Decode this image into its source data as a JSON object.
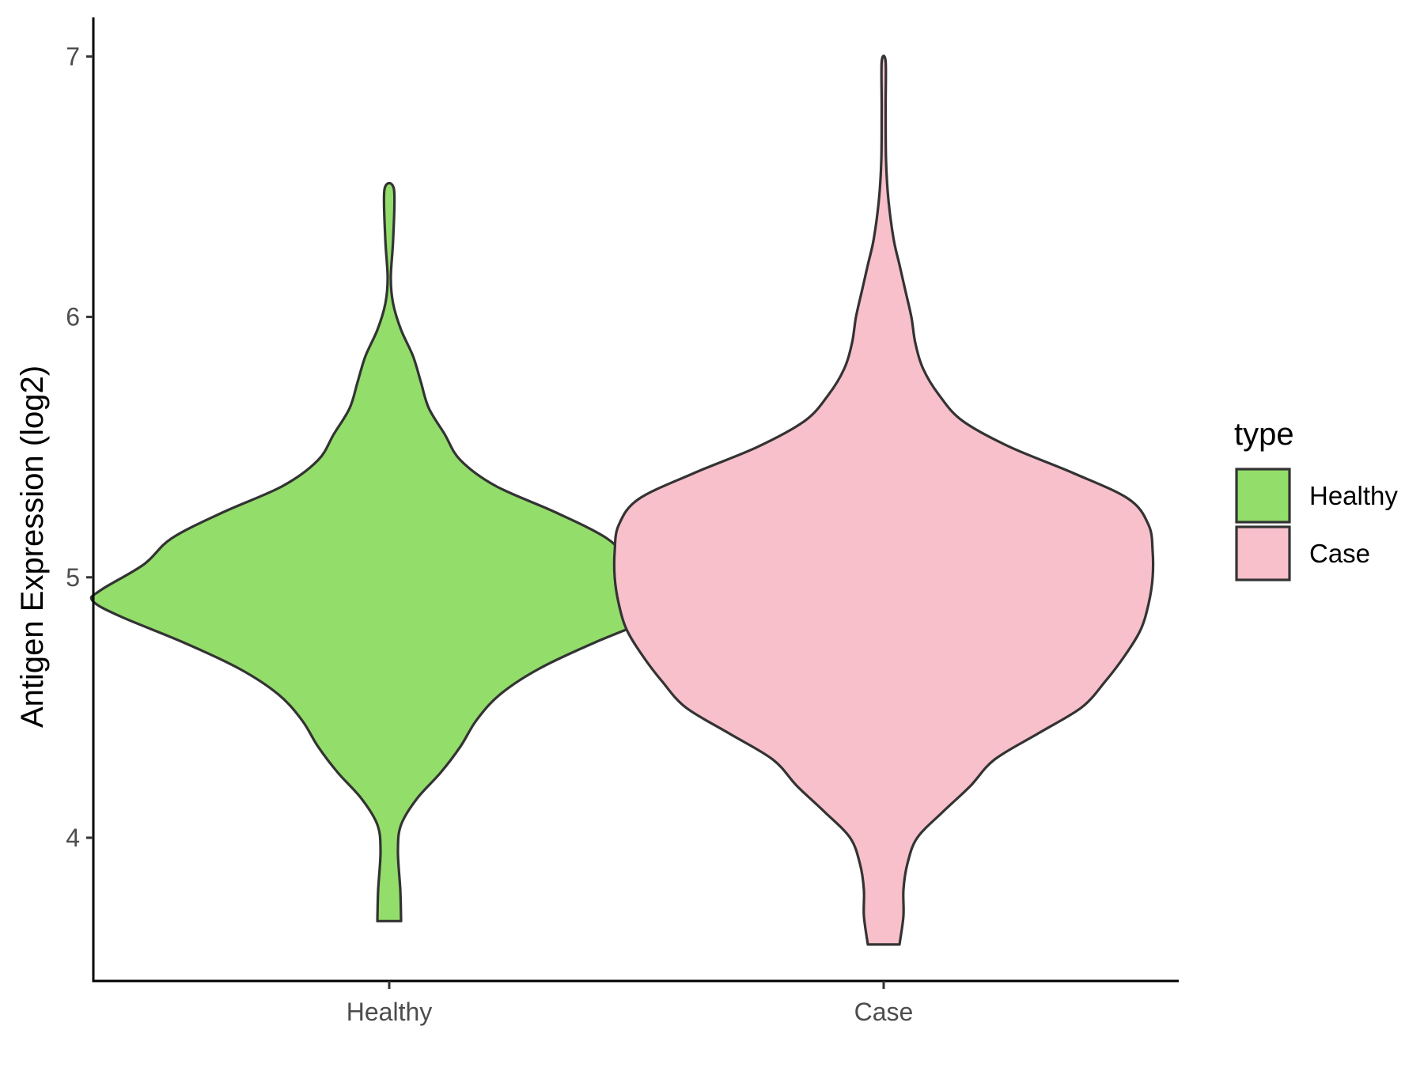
{
  "chart_data": {
    "type": "violin",
    "xlabel": "",
    "ylabel": "Antigen Expression (log2)",
    "ylim": [
      3.45,
      7.15
    ],
    "yticks": [
      4,
      5,
      6,
      7
    ],
    "categories": [
      "Healthy",
      "Case"
    ],
    "grid": false,
    "legend": {
      "title": "type",
      "position": "right",
      "entries": [
        "Healthy",
        "Case"
      ]
    },
    "colors": {
      "Healthy": "#93dd6b",
      "Case": "#f7c0cb",
      "outline": "#333333"
    },
    "series": [
      {
        "name": "Healthy",
        "min": 3.68,
        "max": 6.49,
        "density_profile": [
          [
            3.68,
            0.03
          ],
          [
            3.8,
            0.028
          ],
          [
            3.95,
            0.022
          ],
          [
            4.05,
            0.03
          ],
          [
            4.15,
            0.07
          ],
          [
            4.25,
            0.13
          ],
          [
            4.35,
            0.18
          ],
          [
            4.45,
            0.22
          ],
          [
            4.55,
            0.28
          ],
          [
            4.65,
            0.38
          ],
          [
            4.75,
            0.52
          ],
          [
            4.85,
            0.68
          ],
          [
            4.91,
            0.75
          ],
          [
            4.95,
            0.73
          ],
          [
            5.05,
            0.62
          ],
          [
            5.15,
            0.55
          ],
          [
            5.25,
            0.42
          ],
          [
            5.35,
            0.27
          ],
          [
            5.45,
            0.18
          ],
          [
            5.55,
            0.14
          ],
          [
            5.65,
            0.1
          ],
          [
            5.75,
            0.08
          ],
          [
            5.85,
            0.06
          ],
          [
            5.95,
            0.03
          ],
          [
            6.05,
            0.01
          ],
          [
            6.15,
            0.004
          ],
          [
            6.3,
            0.01
          ],
          [
            6.49,
            0.012
          ]
        ]
      },
      {
        "name": "Case",
        "min": 3.59,
        "max": 6.98,
        "density_profile": [
          [
            3.59,
            0.04
          ],
          [
            3.7,
            0.05
          ],
          [
            3.8,
            0.05
          ],
          [
            3.9,
            0.06
          ],
          [
            4.0,
            0.085
          ],
          [
            4.1,
            0.15
          ],
          [
            4.2,
            0.22
          ],
          [
            4.3,
            0.28
          ],
          [
            4.4,
            0.39
          ],
          [
            4.5,
            0.5
          ],
          [
            4.6,
            0.56
          ],
          [
            4.7,
            0.61
          ],
          [
            4.8,
            0.65
          ],
          [
            4.9,
            0.67
          ],
          [
            5.0,
            0.68
          ],
          [
            5.1,
            0.68
          ],
          [
            5.2,
            0.67
          ],
          [
            5.3,
            0.62
          ],
          [
            5.4,
            0.48
          ],
          [
            5.5,
            0.32
          ],
          [
            5.6,
            0.2
          ],
          [
            5.7,
            0.14
          ],
          [
            5.8,
            0.1
          ],
          [
            5.9,
            0.08
          ],
          [
            6.0,
            0.07
          ],
          [
            6.1,
            0.055
          ],
          [
            6.2,
            0.04
          ],
          [
            6.3,
            0.025
          ],
          [
            6.45,
            0.012
          ],
          [
            6.6,
            0.006
          ],
          [
            6.8,
            0.005
          ],
          [
            6.98,
            0.005
          ]
        ]
      }
    ]
  }
}
